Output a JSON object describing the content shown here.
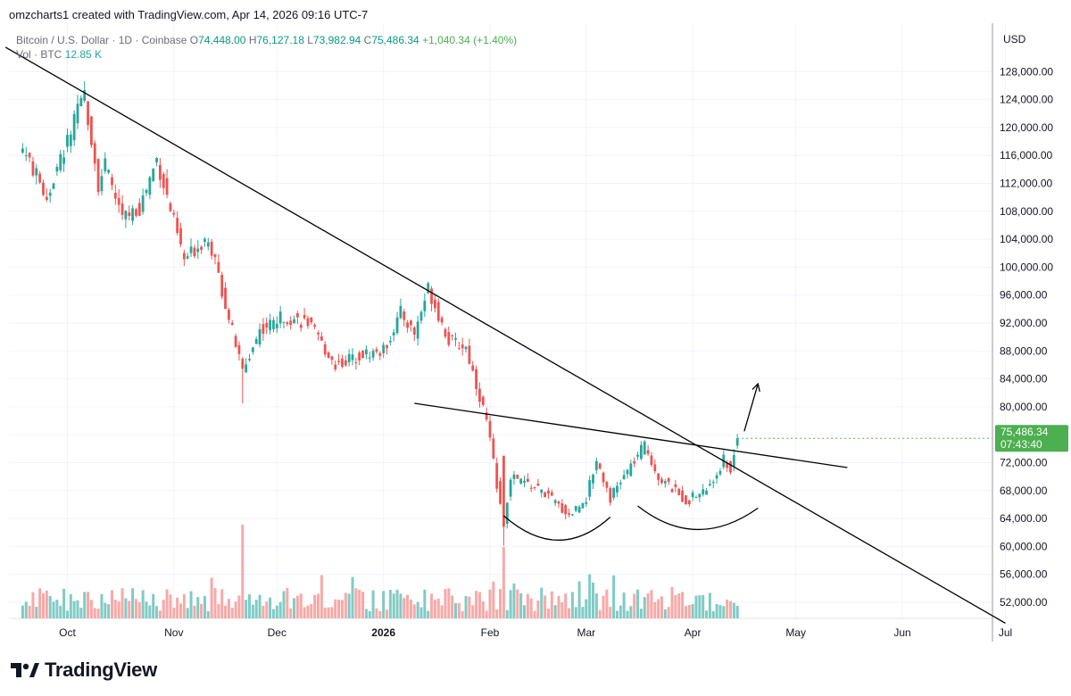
{
  "header": {
    "created_by": "omzcharts1 created with TradingView.com, Apr 14, 2026 09:16 UTC-7"
  },
  "legend": {
    "symbol": "Bitcoin / U.S. Dollar · 1D · Coinbase",
    "open_label": "O",
    "open": "74,448.00",
    "high_label": "H",
    "high": "76,127.18",
    "low_label": "L",
    "low": "73,982.94",
    "close_label": "C",
    "close": "75,486.34",
    "change": "+1,040.34 (+1.40%)",
    "volume_label": "Vol · BTC",
    "volume": "12.85 K"
  },
  "price_tag": {
    "price": "75,486.34",
    "countdown": "07:43:40"
  },
  "brand": "TradingView",
  "colors": {
    "up": "#26a69a",
    "down": "#ef5350",
    "up_vol": "#80cbc4",
    "down_vol": "#f7a9a7",
    "price_tag": "#4caf50"
  },
  "chart_data": {
    "type": "candlestick",
    "currency": "USD",
    "x_tick_labels": [
      "Oct",
      "Nov",
      "Dec",
      "2026",
      "Feb",
      "Mar",
      "Apr",
      "May",
      "Jun",
      "Jul"
    ],
    "y_tick_labels": [
      "128,000.00",
      "124,000.00",
      "120,000.00",
      "116,000.00",
      "112,000.00",
      "108,000.00",
      "104,000.00",
      "100,000.00",
      "96,000.00",
      "92,000.00",
      "88,000.00",
      "84,000.00",
      "80,000.00",
      "76,000.00",
      "72,000.00",
      "68,000.00",
      "64,000.00",
      "60,000.00",
      "56,000.00",
      "52,000.00"
    ],
    "y_range": [
      48000,
      132000
    ],
    "grid": true,
    "series_anchors_close": [
      [
        "2025-09-18",
        117000
      ],
      [
        "2025-09-25",
        110000
      ],
      [
        "2025-10-01",
        118000
      ],
      [
        "2025-10-06",
        124800
      ],
      [
        "2025-10-10",
        112000
      ],
      [
        "2025-10-12",
        114500
      ],
      [
        "2025-10-17",
        107000
      ],
      [
        "2025-10-22",
        108500
      ],
      [
        "2025-10-27",
        115500
      ],
      [
        "2025-11-04",
        101000
      ],
      [
        "2025-11-11",
        104500
      ],
      [
        "2025-11-21",
        85000
      ],
      [
        "2025-11-26",
        91000
      ],
      [
        "2025-12-03",
        93000
      ],
      [
        "2025-12-10",
        92000
      ],
      [
        "2025-12-18",
        86000
      ],
      [
        "2025-12-25",
        87500
      ],
      [
        "2026-01-01",
        88000
      ],
      [
        "2026-01-06",
        93500
      ],
      [
        "2026-01-10",
        90500
      ],
      [
        "2026-01-14",
        97000
      ],
      [
        "2026-01-20",
        89500
      ],
      [
        "2026-01-25",
        88500
      ],
      [
        "2026-01-31",
        78000
      ],
      [
        "2026-02-05",
        63000
      ],
      [
        "2026-02-07",
        70000
      ],
      [
        "2026-02-16",
        68000
      ],
      [
        "2026-02-24",
        64500
      ],
      [
        "2026-03-01",
        67000
      ],
      [
        "2026-03-04",
        72500
      ],
      [
        "2026-03-08",
        67000
      ],
      [
        "2026-03-16",
        73000
      ],
      [
        "2026-03-18",
        74500
      ],
      [
        "2026-03-22",
        70000
      ],
      [
        "2026-03-30",
        66500
      ],
      [
        "2026-04-06",
        68500
      ],
      [
        "2026-04-10",
        72500
      ],
      [
        "2026-04-12",
        71000
      ],
      [
        "2026-04-14",
        75486
      ]
    ],
    "volume_unit": "BTC",
    "last_bar": {
      "date": "2026-04-14",
      "open": 74448.0,
      "high": 76127.18,
      "low": 73982.94,
      "close": 75486.34,
      "volume_k": 12.85
    },
    "drawings": {
      "trendlines": [
        {
          "from": [
            "2025-09-13",
            131500
          ],
          "to": [
            "2026-07-01",
            49000
          ]
        },
        {
          "from": [
            "2026-01-10",
            80500
          ],
          "to": [
            "2026-05-16",
            71300
          ]
        }
      ],
      "arrow": {
        "from": [
          "2026-04-16",
          76500
        ],
        "to": [
          "2026-04-20",
          83300
        ]
      },
      "curves": [
        {
          "from": [
            "2026-02-05",
            64400
          ],
          "via": [
            "2026-02-21",
            57500
          ],
          "to": [
            "2026-03-08",
            64200
          ]
        },
        {
          "from": [
            "2026-03-16",
            65800
          ],
          "via": [
            "2026-04-02",
            59200
          ],
          "to": [
            "2026-04-20",
            65500
          ]
        }
      ]
    }
  }
}
